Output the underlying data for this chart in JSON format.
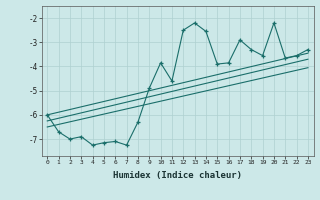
{
  "xlabel": "Humidex (Indice chaleur)",
  "ylabel": "",
  "bg_color": "#cce8e8",
  "grid_color": "#afd0d0",
  "line_color": "#1a6e6a",
  "xlim": [
    -0.5,
    23.5
  ],
  "ylim": [
    -7.7,
    -1.5
  ],
  "xticks": [
    0,
    1,
    2,
    3,
    4,
    5,
    6,
    7,
    8,
    9,
    10,
    11,
    12,
    13,
    14,
    15,
    16,
    17,
    18,
    19,
    20,
    21,
    22,
    23
  ],
  "yticks": [
    -7,
    -6,
    -5,
    -4,
    -3,
    -2
  ],
  "series1_x": [
    0,
    1,
    2,
    3,
    4,
    5,
    6,
    7,
    8,
    9,
    10,
    11,
    12,
    13,
    14,
    15,
    16,
    17,
    18,
    19,
    20,
    21,
    22,
    23
  ],
  "series1_y": [
    -6.0,
    -6.7,
    -7.0,
    -6.9,
    -7.25,
    -7.15,
    -7.1,
    -7.25,
    -6.3,
    -4.9,
    -3.85,
    -4.6,
    -2.5,
    -2.2,
    -2.55,
    -3.9,
    -3.85,
    -2.9,
    -3.3,
    -3.55,
    -2.2,
    -3.65,
    -3.55,
    -3.3
  ],
  "series2_x": [
    0,
    23
  ],
  "series2_y": [
    -6.0,
    -3.45
  ],
  "series3_x": [
    0,
    23
  ],
  "series3_y": [
    -6.25,
    -3.7
  ],
  "series4_x": [
    0,
    23
  ],
  "series4_y": [
    -6.5,
    -4.05
  ]
}
